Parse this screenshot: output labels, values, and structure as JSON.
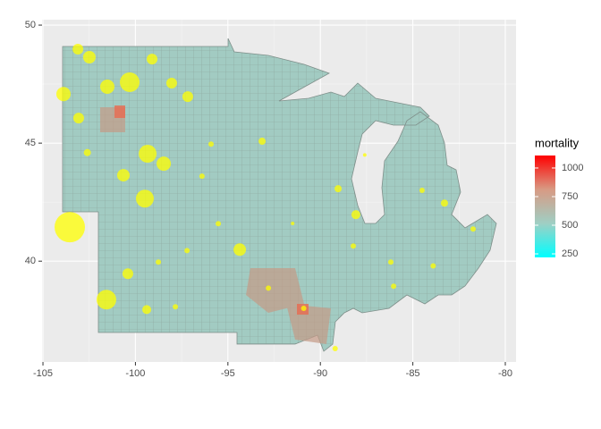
{
  "chart_data": {
    "type": "map",
    "xlim": [
      -105.05,
      -79.42
    ],
    "ylim": [
      35.73,
      50.23
    ],
    "xticks": [
      -105,
      -100,
      -95,
      -90,
      -85,
      -80
    ],
    "yticks": [
      40,
      45,
      50
    ],
    "grid": true,
    "point_color": "#ffff00",
    "x": [
      -103.55,
      -101.57,
      -100.31,
      -99.34,
      -99.49,
      -103.89,
      -101.52,
      -103.07,
      -98.47,
      -94.36,
      -100.65,
      -102.49,
      -103.11,
      -99.1,
      -97.17,
      -98.04,
      -100.41,
      -99.39,
      -93.15,
      -88.08,
      -83.29,
      -89.04,
      -86.19,
      -81.74,
      -95.91,
      -92.81,
      -97.84,
      -95.52,
      -97.21,
      -98.76,
      -86.04,
      -88.22,
      -90.9,
      -89.2,
      -84.5,
      -87.6,
      -91.5,
      -96.4,
      -102.6,
      -83.9
    ],
    "y": [
      41.44,
      38.37,
      47.58,
      44.55,
      42.65,
      47.08,
      47.39,
      46.06,
      44.13,
      40.49,
      43.64,
      48.64,
      48.98,
      48.56,
      46.97,
      47.54,
      39.47,
      37.95,
      45.08,
      41.97,
      42.46,
      43.07,
      39.96,
      41.36,
      44.96,
      38.86,
      38.07,
      41.59,
      40.45,
      39.96,
      38.94,
      40.64,
      38.0,
      36.3,
      43.0,
      44.5,
      41.6,
      43.6,
      44.6,
      39.8
    ],
    "sizes": [
      17,
      11,
      11,
      10,
      10,
      8,
      8,
      6,
      8,
      7,
      7,
      7,
      6,
      6,
      6,
      6,
      6,
      5,
      4,
      5,
      4,
      4,
      3,
      3,
      3,
      3,
      3,
      3,
      3,
      3,
      3,
      3,
      3,
      3,
      3,
      2,
      2,
      3,
      4,
      3
    ],
    "colorbar": {
      "title": "mortality",
      "limits": [
        219,
        1109
      ],
      "ticks": [
        250,
        500,
        750,
        1000
      ],
      "colors": [
        "#00ffff",
        "#9fcfc4",
        "#d89a84",
        "#ff0000"
      ]
    }
  }
}
